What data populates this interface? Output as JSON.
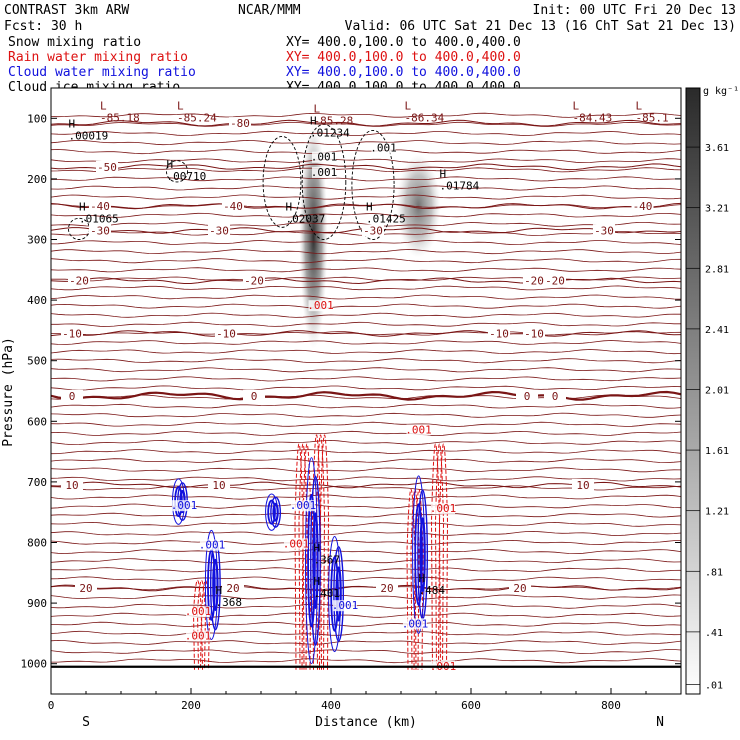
{
  "header": {
    "model": "CONTRAST  3km ARW",
    "center": "NCAR/MMM",
    "init": "Init: 00 UTC Fri 20 Dec 13",
    "fcst": "Fcst:   30 h",
    "valid": "Valid: 06 UTC Sat 21 Dec 13 (16 ChT Sat 21 Dec 13)",
    "fields": [
      {
        "label": "Snow mixing ratio",
        "xy": "XY= 400.0,100.0 to 400.0,400.0",
        "color": "#000000"
      },
      {
        "label": "Rain water mixing ratio",
        "xy": "XY= 400.0,100.0 to 400.0,400.0",
        "color": "#dd1111"
      },
      {
        "label": "Cloud water mixing ratio",
        "xy": "XY= 400.0,100.0 to 400.0,400.0",
        "color": "#1111dd"
      },
      {
        "label": "Cloud ice mixing ratio",
        "xy": "XY= 400.0,100.0 to 400.0,400.0",
        "color": "#000000"
      }
    ]
  },
  "chart_data": {
    "type": "heatmap",
    "xlabel": "Distance (km)",
    "ylabel": "Pressure (hPa)",
    "xlim": [
      0,
      900
    ],
    "ylim": [
      1050,
      50
    ],
    "x_ticks": [
      0,
      200,
      400,
      600,
      800
    ],
    "y_ticks": [
      100,
      200,
      300,
      400,
      500,
      600,
      700,
      800,
      900,
      1000
    ],
    "end_labels": {
      "left": "S",
      "right": "N"
    },
    "colorbar": {
      "unit": "g kg⁻¹",
      "ticks": [
        "3.61",
        "3.21",
        "2.81",
        "2.41",
        "2.01",
        "1.61",
        "1.21",
        ".81",
        ".41",
        ".01"
      ],
      "values": [
        3.61,
        3.21,
        2.81,
        2.41,
        2.01,
        1.61,
        1.21,
        0.81,
        0.41,
        0.01
      ]
    },
    "snow_cores": [
      {
        "x": 375,
        "p_top": 110,
        "p_bottom": 480,
        "max": 3.8
      },
      {
        "x": 525,
        "p_top": 160,
        "p_bottom": 330,
        "max": 1.6
      }
    ],
    "temperature_isotherms": [
      {
        "value": "0",
        "p": 558,
        "bold": true,
        "label_x": [
          30,
          290,
          680,
          720
        ]
      },
      {
        "value": "-10",
        "p": 455,
        "label_x": [
          30,
          250,
          640,
          690
        ]
      },
      {
        "value": "-20",
        "p": 368,
        "label_x": [
          40,
          290,
          690,
          720
        ]
      },
      {
        "value": "-30",
        "p": 285,
        "label_x": [
          70,
          240,
          460,
          790
        ]
      },
      {
        "value": "-40",
        "p": 245,
        "label_x": [
          70,
          260,
          845
        ]
      },
      {
        "value": "-50",
        "p": 180,
        "label_x": [
          80
        ]
      },
      {
        "value": "-80",
        "p": 108,
        "label_x": [
          270
        ]
      },
      {
        "value": "10",
        "p": 705,
        "label_x": [
          30,
          240,
          760
        ]
      },
      {
        "value": "20",
        "p": 875,
        "label_x": [
          50,
          260,
          480,
          670
        ]
      }
    ],
    "extrema_labels": [
      {
        "kind": "L",
        "value": "-85.18",
        "x": 70,
        "p": 95
      },
      {
        "kind": "L",
        "value": "-85.24",
        "x": 180,
        "p": 95
      },
      {
        "kind": "L",
        "value": "-85.28",
        "x": 375,
        "p": 100
      },
      {
        "kind": "L",
        "value": "-86.34",
        "x": 505,
        "p": 95
      },
      {
        "kind": "L",
        "value": "-84.43",
        "x": 745,
        "p": 95
      },
      {
        "kind": "L",
        "value": "-85.1",
        "x": 835,
        "p": 95
      },
      {
        "kind": "H",
        "value": ".00019",
        "x": 25,
        "p": 125
      },
      {
        "kind": "H",
        "value": ".01234",
        "x": 370,
        "p": 120
      },
      {
        "kind": "H",
        "value": ".00710",
        "x": 165,
        "p": 192
      },
      {
        "kind": "H",
        "value": ".01784",
        "x": 555,
        "p": 208
      },
      {
        "kind": "H",
        "value": ".01065",
        "x": 40,
        "p": 262
      },
      {
        "kind": "H",
        "value": ".02037",
        "x": 335,
        "p": 262
      },
      {
        "kind": "H",
        "value": ".01425",
        "x": 450,
        "p": 262
      },
      {
        "kind": "H",
        "value": ".367",
        "x": 375,
        "p": 825
      },
      {
        "kind": "H",
        "value": ".484",
        "x": 525,
        "p": 875
      },
      {
        "kind": "H",
        "value": ".401",
        "x": 375,
        "p": 880
      },
      {
        "kind": "H",
        "value": ".368",
        "x": 235,
        "p": 895
      }
    ],
    "contour_value_labels": [
      {
        "value": ".001",
        "x": 475,
        "p": 155,
        "color": "#000000"
      },
      {
        "value": ".001",
        "x": 390,
        "p": 170,
        "color": "#000000"
      },
      {
        "value": ".001",
        "x": 390,
        "p": 195,
        "color": "#000000"
      },
      {
        "value": ".001",
        "x": 385,
        "p": 415,
        "color": "#dd1111"
      },
      {
        "value": ".001",
        "x": 525,
        "p": 620,
        "color": "#dd1111"
      },
      {
        "value": ".001",
        "x": 560,
        "p": 750,
        "color": "#dd1111"
      },
      {
        "value": ".001",
        "x": 350,
        "p": 808,
        "color": "#dd1111"
      },
      {
        "value": ".001",
        "x": 210,
        "p": 920,
        "color": "#dd1111"
      },
      {
        "value": ".001",
        "x": 210,
        "p": 960,
        "color": "#dd1111"
      },
      {
        "value": ".001",
        "x": 560,
        "p": 1010,
        "color": "#dd1111"
      },
      {
        "value": ".001",
        "x": 190,
        "p": 745,
        "color": "#1111dd"
      },
      {
        "value": ".001",
        "x": 230,
        "p": 810,
        "color": "#1111dd"
      },
      {
        "value": ".001",
        "x": 360,
        "p": 745,
        "color": "#1111dd"
      },
      {
        "value": ".001",
        "x": 420,
        "p": 910,
        "color": "#1111dd"
      },
      {
        "value": ".001",
        "x": 520,
        "p": 940,
        "color": "#1111dd"
      }
    ],
    "rain_columns": [
      {
        "x": 215,
        "p_top": 820,
        "p_bottom": 1010
      },
      {
        "x": 360,
        "p_top": 520,
        "p_bottom": 1010
      },
      {
        "x": 385,
        "p_top": 500,
        "p_bottom": 1010
      },
      {
        "x": 520,
        "p_top": 620,
        "p_bottom": 1010
      },
      {
        "x": 555,
        "p_top": 520,
        "p_bottom": 1010
      }
    ],
    "cloud_water_cells": [
      {
        "x": 185,
        "p_top": 695,
        "p_bottom": 770
      },
      {
        "x": 232,
        "p_top": 780,
        "p_bottom": 960
      },
      {
        "x": 318,
        "p_top": 720,
        "p_bottom": 780
      },
      {
        "x": 375,
        "p_top": 660,
        "p_bottom": 1000
      },
      {
        "x": 408,
        "p_top": 790,
        "p_bottom": 980
      },
      {
        "x": 528,
        "p_top": 690,
        "p_bottom": 950
      }
    ],
    "cloud_ice_cells": [
      {
        "x": 330,
        "p_top": 130,
        "p_bottom": 280
      },
      {
        "x": 390,
        "p_top": 110,
        "p_bottom": 300
      },
      {
        "x": 460,
        "p_top": 120,
        "p_bottom": 300
      },
      {
        "x": 180,
        "p_top": 170,
        "p_bottom": 205
      },
      {
        "x": 40,
        "p_top": 265,
        "p_bottom": 300
      }
    ],
    "surface_pressure": 1005
  },
  "colors": {
    "isotherm": "#7a1515",
    "rain": "#dd1111",
    "cloud_water": "#1111dd",
    "ice": "#000000",
    "frame": "#000000"
  }
}
